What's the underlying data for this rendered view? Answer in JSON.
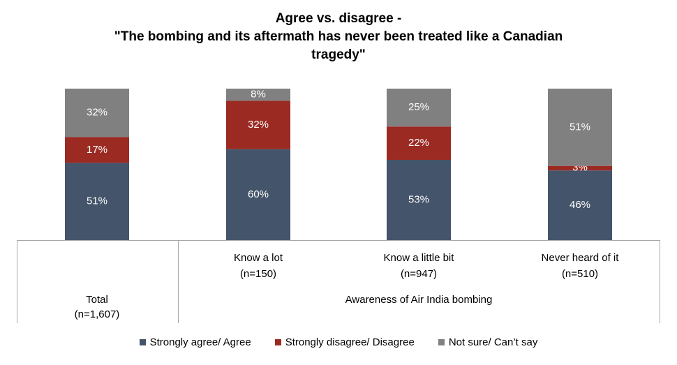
{
  "title": {
    "line1": "Agree vs. disagree -",
    "line2": "\"The bombing and its aftermath has never been treated like a Canadian",
    "line3": "tragedy\""
  },
  "chart_data": {
    "type": "bar",
    "stacked": true,
    "percent_stacked": true,
    "categories": [
      {
        "label": "Total",
        "n": "(n=1,607)"
      },
      {
        "label": "Know a lot",
        "n": "(n=150)"
      },
      {
        "label": "Know a little bit",
        "n": "(n=947)"
      },
      {
        "label": "Never heard of it",
        "n": "(n=510)"
      }
    ],
    "group_label": "Awareness of Air India bombing",
    "series": [
      {
        "name": "Strongly agree/ Agree",
        "color": "#44546a",
        "values": [
          51,
          60,
          53,
          46
        ],
        "labels": [
          "51%",
          "60%",
          "53%",
          "46%"
        ]
      },
      {
        "name": "Strongly disagree/ Disagree",
        "color": "#9b2a23",
        "values": [
          17,
          32,
          22,
          3
        ],
        "labels": [
          "17%",
          "32%",
          "22%",
          "3%"
        ]
      },
      {
        "name": "Not sure/ Can’t say",
        "color": "#808080",
        "values": [
          32,
          8,
          25,
          51
        ],
        "labels": [
          "32%",
          "8%",
          "25%",
          "51%"
        ]
      }
    ],
    "ylim": [
      0,
      100
    ],
    "grid": false,
    "legend_position": "bottom"
  }
}
